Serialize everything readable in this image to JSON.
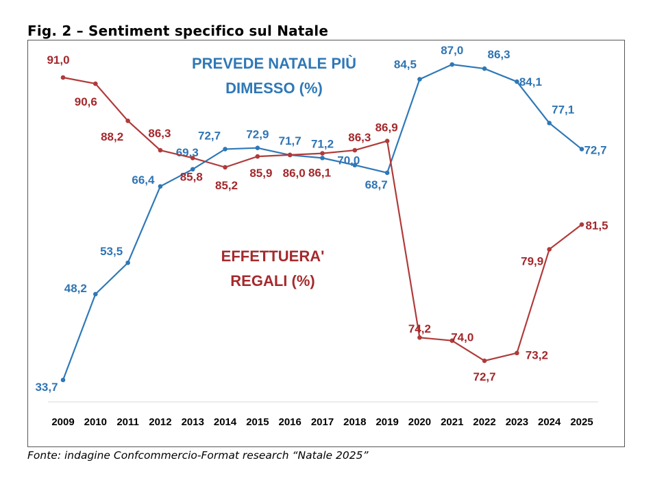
{
  "figure_title": "Fig. 2 – Sentiment specifico sul Natale",
  "source_note": "Fonte: indagine Confcommercio-Format research “Natale 2025”",
  "chart_data": {
    "type": "line",
    "categories": [
      "2009",
      "2010",
      "2011",
      "2012",
      "2013",
      "2014",
      "2015",
      "2016",
      "2017",
      "2018",
      "2019",
      "2020",
      "2021",
      "2022",
      "2023",
      "2024",
      "2025"
    ],
    "series": [
      {
        "name": "PREVEDE NATALE PIÙ DIMESSO (%)",
        "name_lines": [
          "PREVEDE NATALE PIÙ",
          "DIMESSO  (%)"
        ],
        "color": "#2e78b7",
        "values": [
          33.7,
          48.2,
          53.5,
          66.4,
          69.3,
          72.7,
          72.9,
          71.7,
          71.2,
          70.0,
          68.7,
          84.5,
          87.0,
          86.3,
          84.1,
          77.1,
          72.7
        ],
        "labels": [
          "33,7",
          "48,2",
          "53,5",
          "66,4",
          "69,3",
          "72,7",
          "72,9",
          "71,7",
          "71,2",
          "70,0",
          "68,7",
          "84,5",
          "87,0",
          "86,3",
          "84,1",
          "77,1",
          "72,7"
        ]
      },
      {
        "name": "EFFETTUERA' REGALI (%)",
        "name_lines": [
          "EFFETTUERA'",
          "REGALI (%)"
        ],
        "color": "#b03a3a",
        "values": [
          91.0,
          90.6,
          88.2,
          86.3,
          85.8,
          85.2,
          85.9,
          86.0,
          86.1,
          86.3,
          86.9,
          74.2,
          74.0,
          72.7,
          73.2,
          79.9,
          81.5
        ],
        "labels": [
          "91,0",
          "90,6",
          "88,2",
          "86,3",
          "85,8",
          "85,2",
          "85,9",
          "86,0",
          "86,1",
          "86,3",
          "86,9",
          "74,2",
          "74,0",
          "72,7",
          "73,2",
          "79,9",
          "81,5"
        ]
      }
    ],
    "xlabel": "",
    "ylabel": "",
    "y_axis_visible": false,
    "grid": false,
    "legend": "inline labels"
  }
}
